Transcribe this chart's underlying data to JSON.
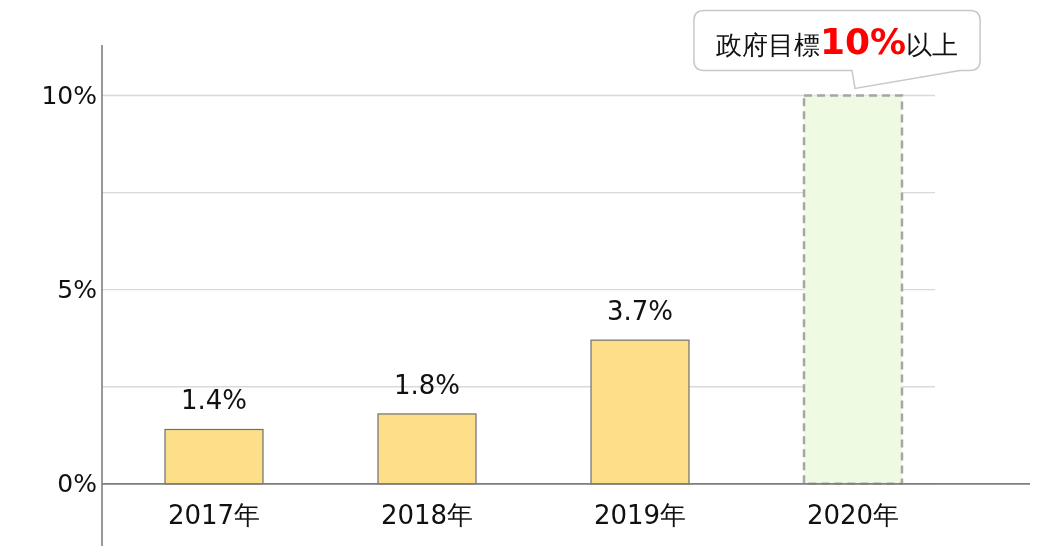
{
  "chart_data": {
    "type": "bar",
    "categories": [
      "2017年",
      "2018年",
      "2019年",
      "2020年"
    ],
    "series": [
      {
        "color": "#fddf8a",
        "values": [
          1.4,
          1.8,
          3.7,
          null
        ],
        "value_labels": [
          "1.4%",
          "1.8%",
          "3.7%",
          null
        ]
      },
      {
        "color": "#effae3",
        "values": [
          null,
          null,
          null,
          10
        ],
        "line_style": "dashed"
      }
    ],
    "stacked": true,
    "ylim": [
      -1.6,
      11.3
    ],
    "yticks": [
      {
        "value": 0,
        "label": "0%"
      },
      {
        "value": 2.5,
        "label": null
      },
      {
        "value": 5,
        "label": "5%"
      },
      {
        "value": 7.5,
        "label": null
      },
      {
        "value": 10,
        "label": "10%"
      }
    ],
    "grid": "y",
    "annotations": [
      {
        "text": "政府目標10%以上",
        "x": "2020年",
        "y": 10
      }
    ]
  }
}
